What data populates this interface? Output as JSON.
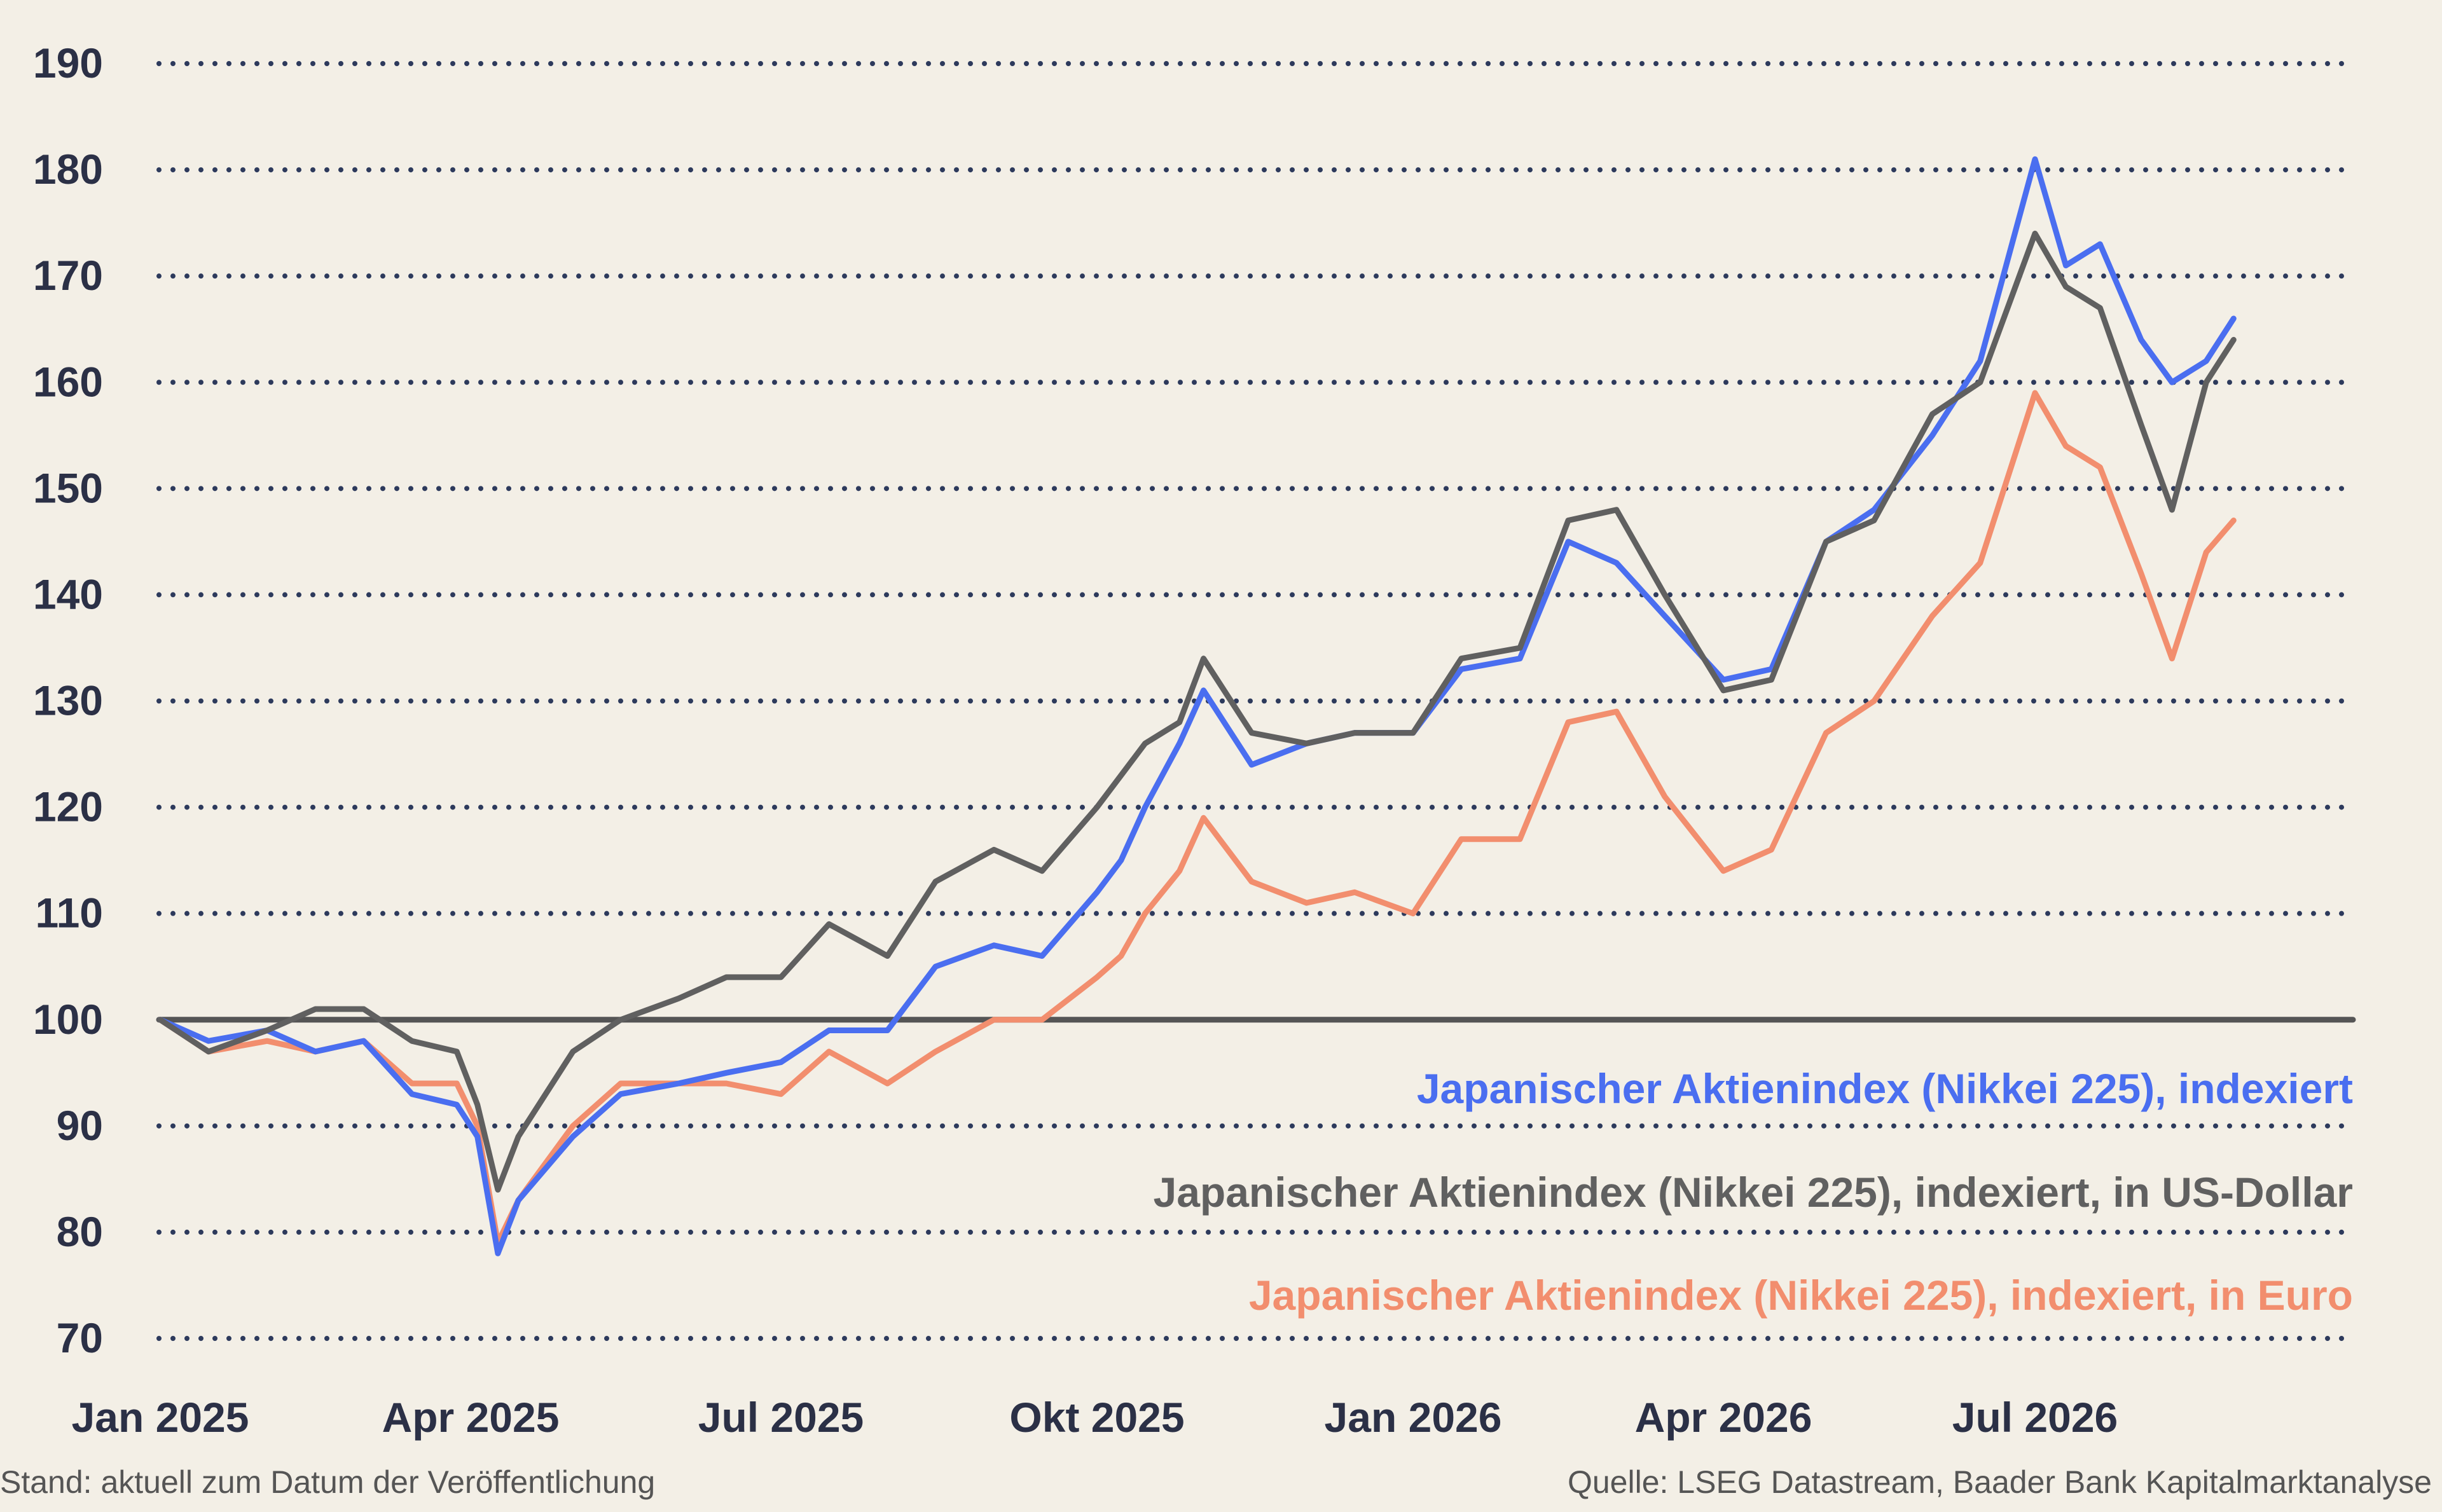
{
  "chart_data": {
    "type": "line",
    "title": "",
    "xlabel": "",
    "ylabel": "",
    "ylim": [
      70,
      190
    ],
    "y_ticks": [
      "70",
      "80",
      "90",
      "100",
      "110",
      "120",
      "130",
      "140",
      "150",
      "160",
      "170",
      "180",
      "190"
    ],
    "x_ticks": [
      "Jan 2025",
      "Apr 2025",
      "Jul 2025",
      "Okt 2025",
      "Jan 2026",
      "Apr 2026",
      "Jul 2026"
    ],
    "grid": "horizontal dotted",
    "legend_position": "bottom-right (inside plot)",
    "reference_line": 100,
    "series": [
      {
        "name": "Japanischer Aktienindex (Nikkei 225), indexiert",
        "color": "#4a6ef0",
        "values": [
          [
            "2025-01-01",
            100
          ],
          [
            "2025-01-15",
            98
          ],
          [
            "2025-02-01",
            99
          ],
          [
            "2025-02-15",
            97
          ],
          [
            "2025-03-01",
            98
          ],
          [
            "2025-03-15",
            93
          ],
          [
            "2025-03-28",
            92
          ],
          [
            "2025-04-03",
            89
          ],
          [
            "2025-04-09",
            78
          ],
          [
            "2025-04-15",
            83
          ],
          [
            "2025-05-01",
            89
          ],
          [
            "2025-05-15",
            93
          ],
          [
            "2025-06-01",
            94
          ],
          [
            "2025-06-15",
            95
          ],
          [
            "2025-07-01",
            96
          ],
          [
            "2025-07-15",
            99
          ],
          [
            "2025-08-01",
            99
          ],
          [
            "2025-08-15",
            105
          ],
          [
            "2025-09-01",
            107
          ],
          [
            "2025-09-15",
            106
          ],
          [
            "2025-10-01",
            112
          ],
          [
            "2025-10-08",
            115
          ],
          [
            "2025-10-15",
            120
          ],
          [
            "2025-10-25",
            126
          ],
          [
            "2025-11-01",
            131
          ],
          [
            "2025-11-15",
            124
          ],
          [
            "2025-12-01",
            126
          ],
          [
            "2025-12-15",
            127
          ],
          [
            "2026-01-01",
            127
          ],
          [
            "2026-01-15",
            133
          ],
          [
            "2026-02-01",
            134
          ],
          [
            "2026-02-15",
            145
          ],
          [
            "2026-03-01",
            143
          ],
          [
            "2026-03-15",
            138
          ],
          [
            "2026-04-01",
            132
          ],
          [
            "2026-04-15",
            133
          ],
          [
            "2026-05-01",
            145
          ],
          [
            "2026-05-15",
            148
          ],
          [
            "2026-06-01",
            155
          ],
          [
            "2026-06-15",
            162
          ],
          [
            "2026-07-01",
            181
          ],
          [
            "2026-07-10",
            171
          ],
          [
            "2026-07-20",
            173
          ],
          [
            "2026-08-01",
            164
          ],
          [
            "2026-08-10",
            160
          ],
          [
            "2026-08-20",
            162
          ],
          [
            "2026-08-28",
            166
          ]
        ]
      },
      {
        "name": "Japanischer Aktienindex (Nikkei 225), indexiert, in US-Dollar",
        "color": "#606060",
        "values": [
          [
            "2025-01-01",
            100
          ],
          [
            "2025-01-15",
            97
          ],
          [
            "2025-02-01",
            99
          ],
          [
            "2025-02-15",
            101
          ],
          [
            "2025-03-01",
            101
          ],
          [
            "2025-03-15",
            98
          ],
          [
            "2025-03-28",
            97
          ],
          [
            "2025-04-03",
            92
          ],
          [
            "2025-04-09",
            84
          ],
          [
            "2025-04-15",
            89
          ],
          [
            "2025-05-01",
            97
          ],
          [
            "2025-05-15",
            100
          ],
          [
            "2025-06-01",
            102
          ],
          [
            "2025-06-15",
            104
          ],
          [
            "2025-07-01",
            104
          ],
          [
            "2025-07-15",
            109
          ],
          [
            "2025-08-01",
            106
          ],
          [
            "2025-08-15",
            113
          ],
          [
            "2025-09-01",
            116
          ],
          [
            "2025-09-15",
            114
          ],
          [
            "2025-10-01",
            120
          ],
          [
            "2025-10-08",
            123
          ],
          [
            "2025-10-15",
            126
          ],
          [
            "2025-10-25",
            128
          ],
          [
            "2025-11-01",
            134
          ],
          [
            "2025-11-15",
            127
          ],
          [
            "2025-12-01",
            126
          ],
          [
            "2025-12-15",
            127
          ],
          [
            "2026-01-01",
            127
          ],
          [
            "2026-01-15",
            134
          ],
          [
            "2026-02-01",
            135
          ],
          [
            "2026-02-15",
            147
          ],
          [
            "2026-03-01",
            148
          ],
          [
            "2026-03-15",
            140
          ],
          [
            "2026-04-01",
            131
          ],
          [
            "2026-04-15",
            132
          ],
          [
            "2026-05-01",
            145
          ],
          [
            "2026-05-15",
            147
          ],
          [
            "2026-06-01",
            157
          ],
          [
            "2026-06-15",
            160
          ],
          [
            "2026-07-01",
            174
          ],
          [
            "2026-07-10",
            169
          ],
          [
            "2026-07-20",
            167
          ],
          [
            "2026-08-01",
            156
          ],
          [
            "2026-08-10",
            148
          ],
          [
            "2026-08-20",
            160
          ],
          [
            "2026-08-28",
            164
          ]
        ]
      },
      {
        "name": "Japanischer Aktienindex (Nikkei 225), indexiert, in Euro",
        "color": "#f28e6e",
        "values": [
          [
            "2025-01-01",
            100
          ],
          [
            "2025-01-15",
            97
          ],
          [
            "2025-02-01",
            98
          ],
          [
            "2025-02-15",
            97
          ],
          [
            "2025-03-01",
            98
          ],
          [
            "2025-03-15",
            94
          ],
          [
            "2025-03-28",
            94
          ],
          [
            "2025-04-03",
            90
          ],
          [
            "2025-04-09",
            79
          ],
          [
            "2025-04-15",
            83
          ],
          [
            "2025-05-01",
            90
          ],
          [
            "2025-05-15",
            94
          ],
          [
            "2025-06-01",
            94
          ],
          [
            "2025-06-15",
            94
          ],
          [
            "2025-07-01",
            93
          ],
          [
            "2025-07-15",
            97
          ],
          [
            "2025-08-01",
            94
          ],
          [
            "2025-08-15",
            97
          ],
          [
            "2025-09-01",
            100
          ],
          [
            "2025-09-15",
            100
          ],
          [
            "2025-10-01",
            104
          ],
          [
            "2025-10-08",
            106
          ],
          [
            "2025-10-15",
            110
          ],
          [
            "2025-10-25",
            114
          ],
          [
            "2025-11-01",
            119
          ],
          [
            "2025-11-15",
            113
          ],
          [
            "2025-12-01",
            111
          ],
          [
            "2025-12-15",
            112
          ],
          [
            "2026-01-01",
            110
          ],
          [
            "2026-01-15",
            117
          ],
          [
            "2026-02-01",
            117
          ],
          [
            "2026-02-15",
            128
          ],
          [
            "2026-03-01",
            129
          ],
          [
            "2026-03-15",
            121
          ],
          [
            "2026-04-01",
            114
          ],
          [
            "2026-04-15",
            116
          ],
          [
            "2026-05-01",
            127
          ],
          [
            "2026-05-15",
            130
          ],
          [
            "2026-06-01",
            138
          ],
          [
            "2026-06-15",
            143
          ],
          [
            "2026-07-01",
            159
          ],
          [
            "2026-07-10",
            154
          ],
          [
            "2026-07-20",
            152
          ],
          [
            "2026-08-01",
            142
          ],
          [
            "2026-08-10",
            134
          ],
          [
            "2026-08-20",
            144
          ],
          [
            "2026-08-28",
            147
          ]
        ]
      }
    ]
  },
  "footer": {
    "left": "Stand: aktuell zum Datum der Veröffentlichung",
    "right": "Quelle: LSEG Datastream, Baader Bank Kapitalmarktanalyse"
  }
}
